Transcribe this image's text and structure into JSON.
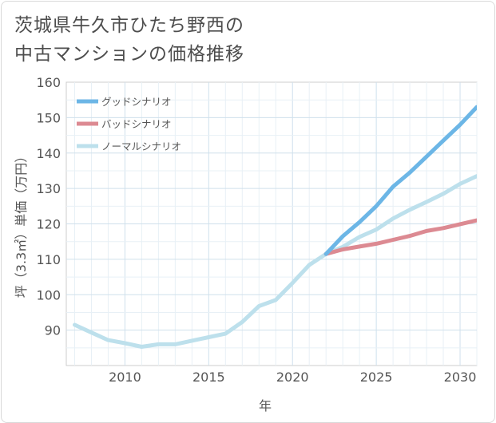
{
  "title_lines": [
    "茨城県牛久市ひたち野西の",
    "中古マンションの価格推移"
  ],
  "chart_data": {
    "type": "line",
    "xlabel": "年",
    "ylabel": "坪（3.3㎡）単価（万円）",
    "xlim": [
      2006.5,
      2031
    ],
    "ylim": [
      80,
      160
    ],
    "x_ticks": [
      2010,
      2015,
      2020,
      2025,
      2030
    ],
    "y_ticks": [
      90,
      100,
      110,
      120,
      130,
      140,
      150,
      160
    ],
    "grid": true,
    "legend_position": "top-left",
    "series": [
      {
        "name": "グッドシナリオ",
        "color": "#6cb6e6",
        "x": [
          2022,
          2023,
          2024,
          2025,
          2026,
          2027,
          2028,
          2029,
          2030,
          2031
        ],
        "y": [
          111.5,
          116.5,
          120.5,
          125,
          130.5,
          134.5,
          139,
          143.5,
          148,
          153
        ]
      },
      {
        "name": "バッドシナリオ",
        "color": "#dc8a92",
        "x": [
          2022,
          2023,
          2024,
          2025,
          2026,
          2027,
          2028,
          2029,
          2030,
          2031
        ],
        "y": [
          111.5,
          112.8,
          113.6,
          114.4,
          115.5,
          116.6,
          118,
          118.8,
          119.9,
          121
        ]
      },
      {
        "name": "ノーマルシナリオ",
        "color": "#bde0ec",
        "x": [
          2007,
          2008,
          2009,
          2010,
          2011,
          2012,
          2013,
          2014,
          2015,
          2016,
          2017,
          2018,
          2019,
          2020,
          2021,
          2022,
          2023,
          2024,
          2025,
          2026,
          2027,
          2028,
          2029,
          2030,
          2031
        ],
        "y": [
          91.5,
          89.3,
          87.2,
          86.3,
          85.3,
          86,
          86,
          87,
          88,
          89,
          92.3,
          96.8,
          98.5,
          103.3,
          108.4,
          111.5,
          113.5,
          116.3,
          118.4,
          121.5,
          124,
          126.2,
          128.5,
          131.3,
          133.5
        ]
      }
    ]
  }
}
